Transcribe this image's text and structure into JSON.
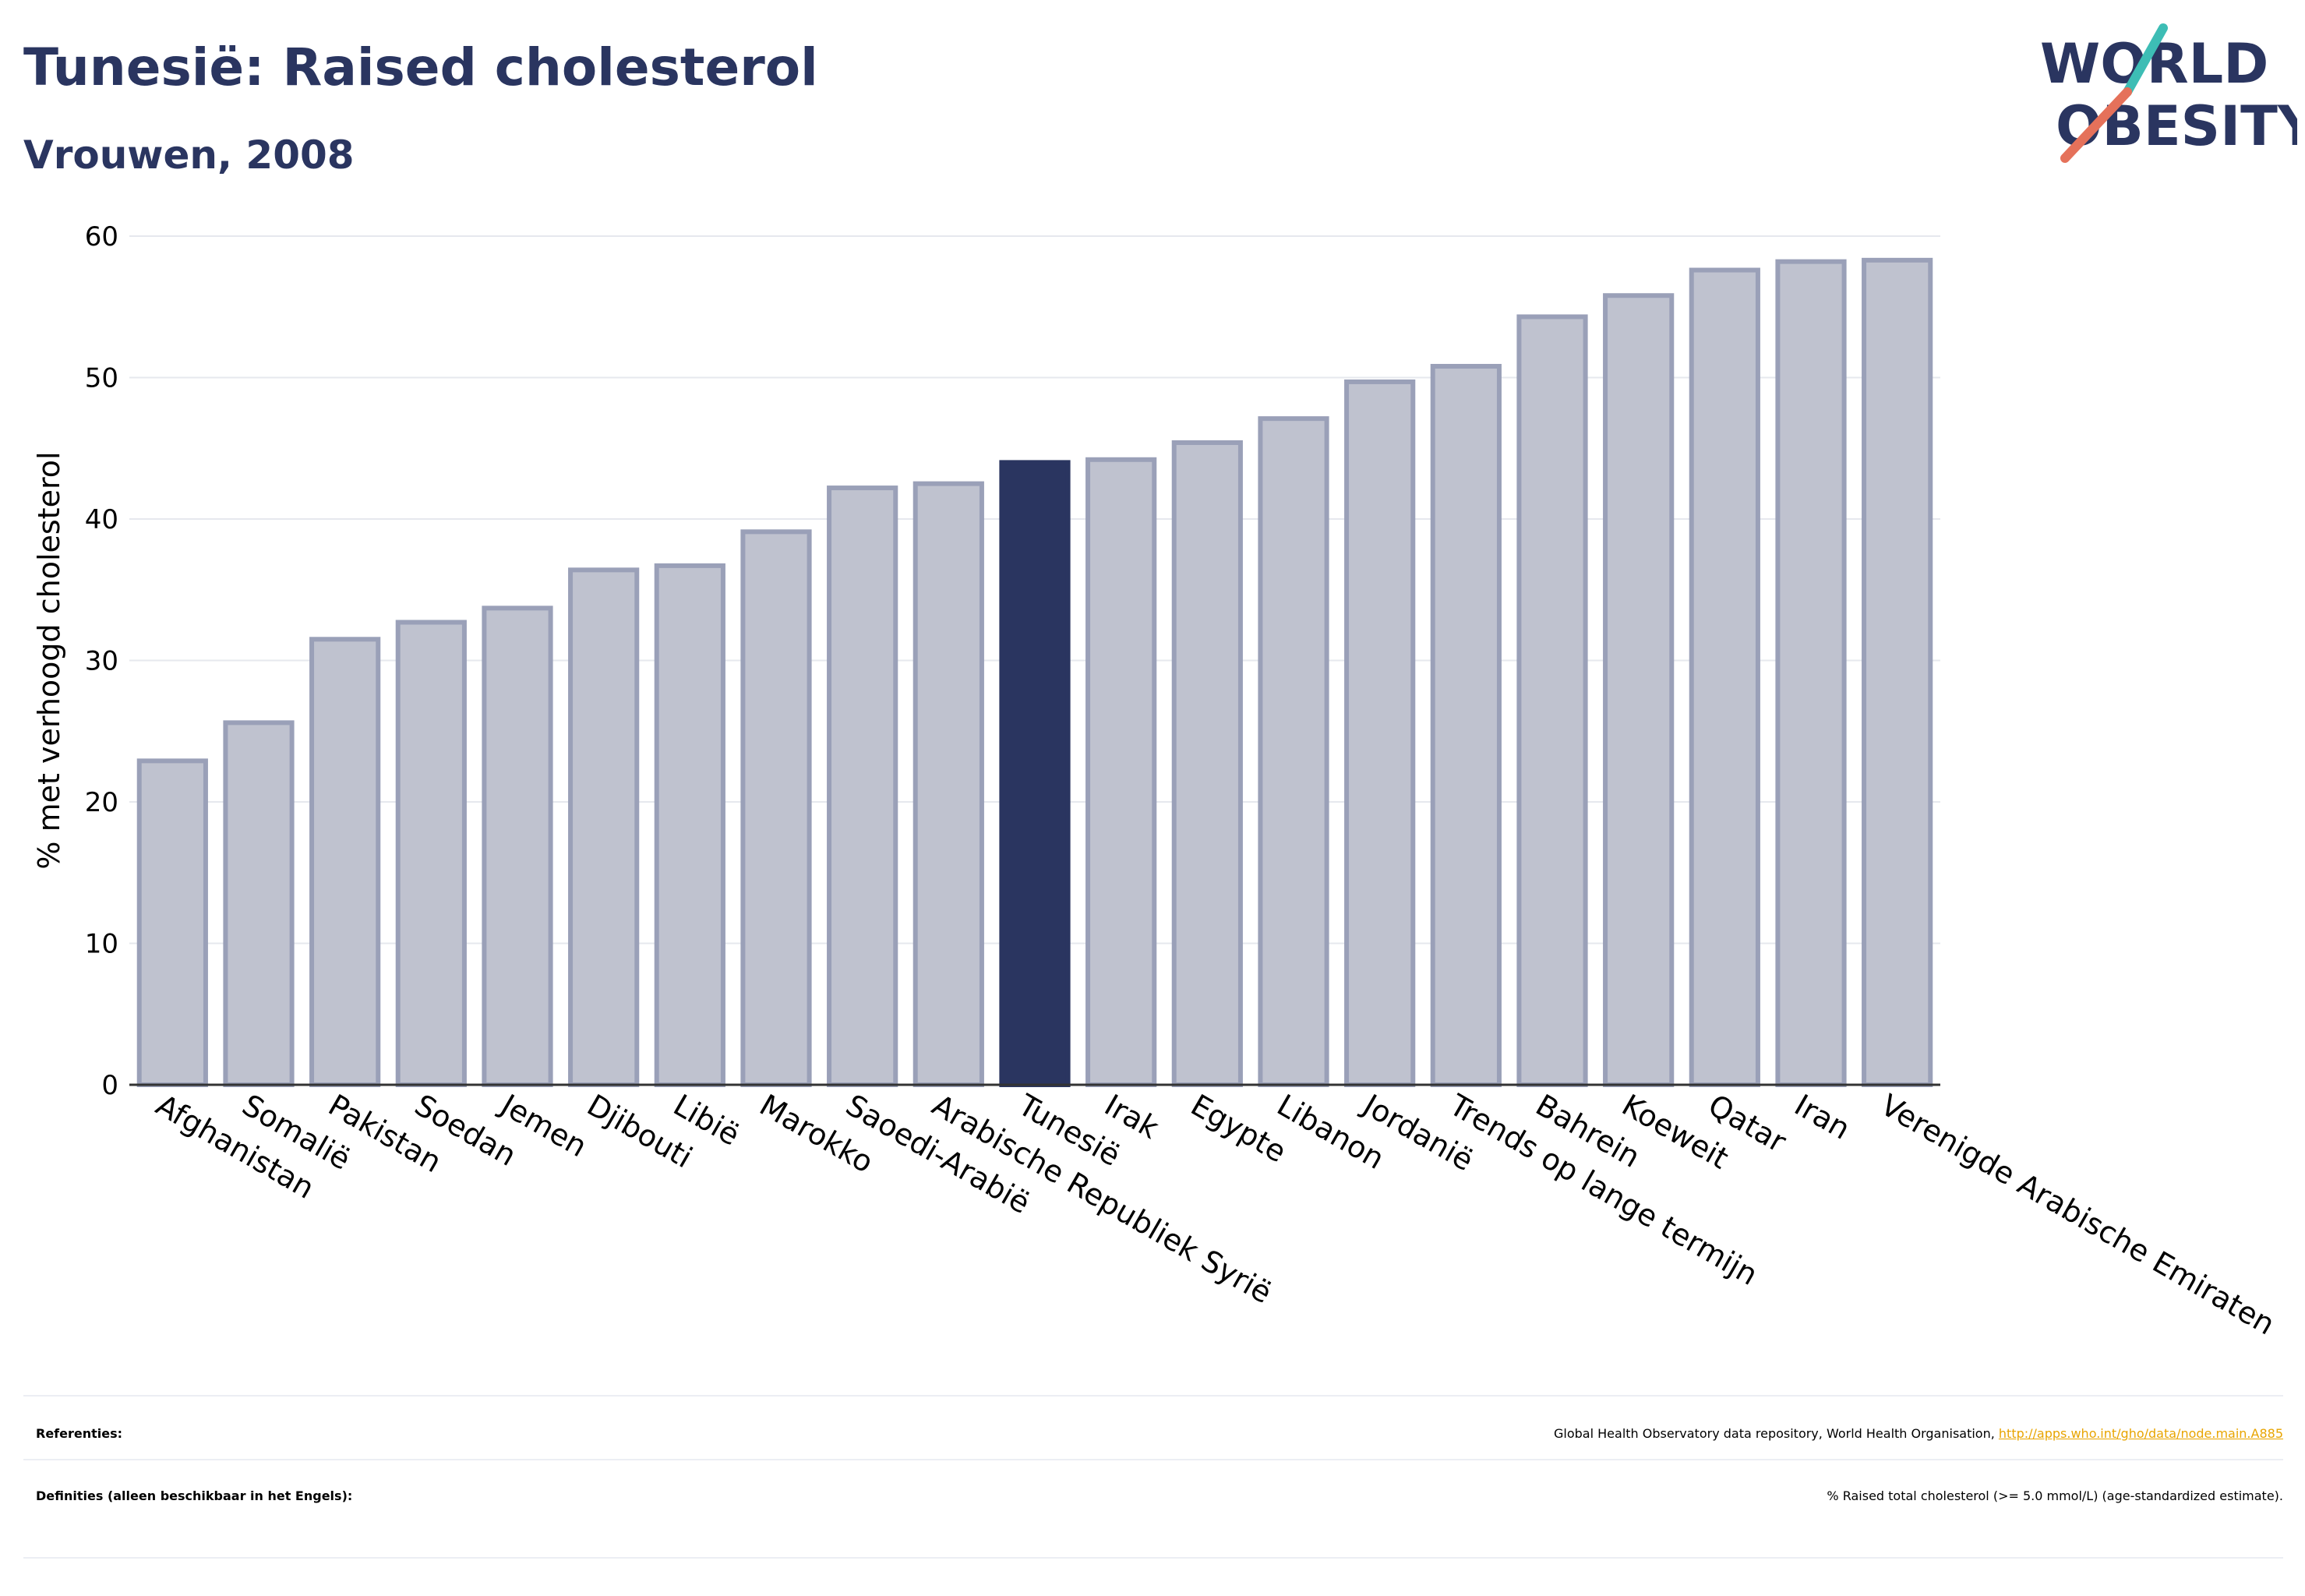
{
  "header": {
    "title": "Tunesië: Raised cholesterol",
    "subtitle": "Vrouwen, 2008"
  },
  "logo": {
    "line1": "WORLD",
    "line2": "OBESITY",
    "accent_teal": "#3dbdb5",
    "accent_coral": "#e5715a",
    "text_color": "#2a3560"
  },
  "chart_data": {
    "type": "bar",
    "ylabel": "% met verhoogd cholesterol",
    "ylim": [
      0,
      60
    ],
    "yticks": [
      0,
      10,
      20,
      30,
      40,
      50,
      60
    ],
    "grid": true,
    "highlight": "Tunesië",
    "colors": {
      "bar": "#bfc2cf",
      "bar_border": "#9aa0b8",
      "highlight": "#2a3560"
    },
    "categories": [
      "Afghanistan",
      "Somalië",
      "Pakistan",
      "Soedan",
      "Jemen",
      "Djibouti",
      "Libië",
      "Marokko",
      "Saoedi-Arabië",
      "Arabische Republiek Syrië",
      "Tunesië",
      "Irak",
      "Egypte",
      "Libanon",
      "Jordanië",
      "Trends op lange termijn",
      "Bahrein",
      "Koeweit",
      "Qatar",
      "Iran",
      "Verenigde Arabische Emiraten"
    ],
    "values": [
      22.9,
      25.6,
      31.5,
      32.7,
      33.7,
      36.4,
      36.7,
      39.1,
      42.2,
      42.5,
      44.0,
      44.2,
      45.4,
      47.1,
      49.7,
      50.8,
      54.3,
      55.8,
      57.6,
      58.2,
      58.3
    ]
  },
  "footer": {
    "references_label": "Referenties:",
    "references_text": "Global Health Observatory data repository, World Health Organisation, ",
    "references_link": "http://apps.who.int/gho/data/node.main.A885",
    "definitions_label": "Definities (alleen beschikbaar in het Engels):",
    "definitions_text": "% Raised total cholesterol (>= 5.0 mmol/L) (age-standardized estimate)."
  }
}
